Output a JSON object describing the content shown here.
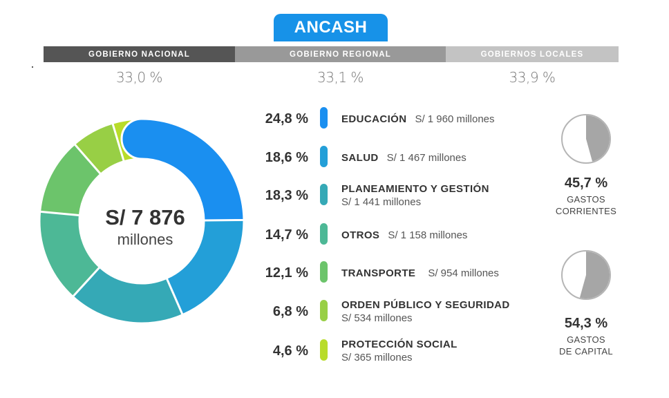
{
  "title": "ANCASH",
  "government_levels": [
    {
      "label": "GOBIERNO NACIONAL",
      "share": "33,0 %",
      "color": "#555555"
    },
    {
      "label": "GOBIERNO REGIONAL",
      "share": "33,1 %",
      "color": "#999999"
    },
    {
      "label": "GOBIERNOS LOCALES",
      "share": "33,9 %",
      "color": "#c3c3c3"
    }
  ],
  "total": {
    "value": "S/ 7 876",
    "unit": "millones"
  },
  "chart_data": [
    {
      "type": "pie",
      "categories": [
        "EDUCACIÓN",
        "SALUD",
        "PLANEAMIENTO Y GESTIÓN",
        "OTROS",
        "TRANSPORTE",
        "ORDEN PÚBLICO Y SEGURIDAD",
        "PROTECCIÓN SOCIAL"
      ],
      "values": [
        24.8,
        18.6,
        18.3,
        14.7,
        12.1,
        6.8,
        4.6
      ],
      "value_labels": [
        "24,8 %",
        "18,6 %",
        "18,3 %",
        "14,7 %",
        "12,1 %",
        "6,8 %",
        "4,6 %"
      ],
      "amounts": [
        "S/ 1 960 millones",
        "S/ 1 467 millones",
        "S/ 1 441 millones",
        "S/ 1 158 millones",
        "S/ 954 millones",
        "S/ 534 millones",
        "S/ 365 millones"
      ],
      "colors": [
        "#1a8ff0",
        "#239fd8",
        "#35a9b6",
        "#4db896",
        "#6cc46b",
        "#98cf45",
        "#b8dc2a"
      ],
      "style": "donut"
    },
    {
      "type": "pie",
      "categories": [
        "GASTOS CORRIENTES"
      ],
      "values": [
        45.7
      ],
      "value_labels": [
        "45,7 %"
      ],
      "label_lines": [
        "GASTOS",
        "CORRIENTES"
      ],
      "colors": [
        "#a6a6a6"
      ]
    },
    {
      "type": "pie",
      "categories": [
        "GASTOS DE CAPITAL"
      ],
      "values": [
        54.3
      ],
      "value_labels": [
        "54,3 %"
      ],
      "label_lines": [
        "GASTOS",
        "DE CAPITAL"
      ],
      "colors": [
        "#a6a6a6"
      ]
    }
  ]
}
